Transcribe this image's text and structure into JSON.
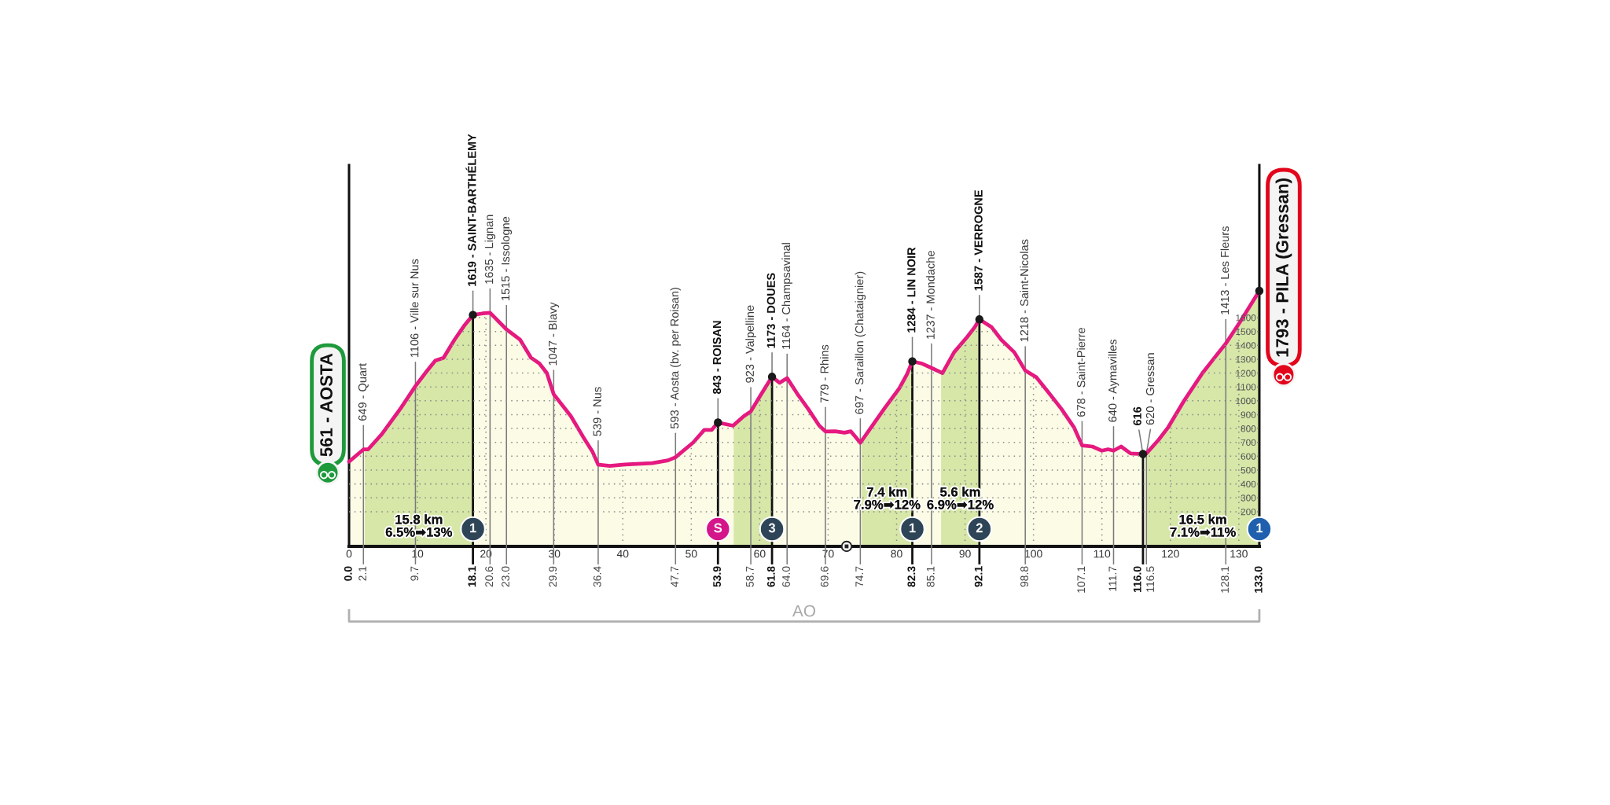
{
  "chart_data": {
    "type": "line",
    "xlim": [
      0,
      133
    ],
    "xticks": [
      0,
      10,
      20,
      30,
      40,
      50,
      60,
      70,
      80,
      90,
      100,
      110,
      120,
      130
    ],
    "ylim": [
      -50,
      2700
    ],
    "yticks": [
      200,
      300,
      400,
      500,
      600,
      700,
      800,
      900,
      1000,
      1100,
      1200,
      1300,
      1400,
      1500,
      1600
    ],
    "x2lim": [
      0,
      133
    ],
    "x2ticks": [
      {
        "value": 0,
        "label": "0.0"
      },
      2.1,
      9.7,
      18.1,
      20.6,
      {
        "value": 23,
        "label": "23.0"
      },
      29.9,
      36.4,
      47.7,
      53.9,
      58.7,
      61.8,
      {
        "value": 64,
        "label": "64.0"
      },
      69.6,
      74.7,
      82.3,
      85.1,
      92.1,
      98.8,
      107.1,
      111.7,
      {
        "value": 116,
        "label": "116.0"
      },
      116.5,
      128.1,
      {
        "value": 133,
        "label": "133.0"
      }
    ],
    "grid": true,
    "series": [
      {
        "color": "#e5197f",
        "x": [
          0,
          2.1,
          2.8,
          4.8,
          7.6,
          9.7,
          11.3,
          12.6,
          13.8,
          15.4,
          16.8,
          18.1,
          19.5,
          20.6,
          23.0,
          25.0,
          26.6,
          27.8,
          28.9,
          29.9,
          32.4,
          34.2,
          35.6,
          36.4,
          38.1,
          40.3,
          44.3,
          46.6,
          47.7,
          50.3,
          51.9,
          53.0,
          53.9,
          56.1,
          57.7,
          58.7,
          60.0,
          61.8,
          62.9,
          64.0,
          65.5,
          67.1,
          68.7,
          69.6,
          71.0,
          72.4,
          73.3,
          74.0,
          74.7,
          76.3,
          78.3,
          80.4,
          81.5,
          82.3,
          83.6,
          85.1,
          86.7,
          88.4,
          90.3,
          91.4,
          92.1,
          93.9,
          95.3,
          97.2,
          98.8,
          100.4,
          102.2,
          104.1,
          105.9,
          107.1,
          108.6,
          110.0,
          110.9,
          111.7,
          112.8,
          114.2,
          116.0,
          116.5,
          118.3,
          119.7,
          122.0,
          124.7,
          126.6,
          128.1,
          130.2,
          133.0
        ],
        "values": [
          561,
          649,
          650,
          760,
          950,
          1106,
          1210,
          1290,
          1310,
          1440,
          1540,
          1619,
          1630,
          1635,
          1515,
          1440,
          1310,
          1270,
          1200,
          1047,
          890,
          740,
          630,
          539,
          530,
          540,
          550,
          570,
          593,
          700,
          790,
          790,
          843,
          820,
          890,
          923,
          1030,
          1173,
          1130,
          1164,
          1050,
          940,
          820,
          779,
          780,
          770,
          780,
          740,
          697,
          810,
          950,
          1090,
          1190,
          1284,
          1270,
          1237,
          1200,
          1350,
          1460,
          1530,
          1587,
          1530,
          1440,
          1350,
          1218,
          1170,
          1060,
          940,
          810,
          678,
          670,
          640,
          650,
          640,
          670,
          620,
          616,
          620,
          720,
          810,
          1000,
          1200,
          1320,
          1413,
          1570,
          1793
        ]
      },
      {
        "type": "scatter",
        "color": "#1a1a1a",
        "x": [
          18.1,
          53.9,
          61.8,
          82.3,
          92.1,
          116.0,
          133.0
        ],
        "values": [
          1619,
          843,
          1173,
          1284,
          1587,
          616,
          1793
        ]
      },
      {
        "type": "bubble",
        "x": [
          18.1,
          53.9,
          61.8,
          82.3,
          92.1,
          133.0
        ],
        "values": [
          75,
          75,
          75,
          75,
          75,
          75
        ],
        "sizes": [
          1,
          1,
          1,
          1,
          1,
          1
        ],
        "colors": [
          "#2e4457",
          "#d4168a",
          "#2e4457",
          "#2e4457",
          "#2e4457",
          "#1f5fae"
        ]
      }
    ],
    "bands": [
      {
        "axis": "x",
        "from": 0,
        "to": 133,
        "color": "#fbfbe6"
      },
      {
        "axis": "x",
        "from": 2.3,
        "to": 18.1,
        "label": "15.8 km\n6.5%➡13%",
        "color": "#d6e7a8"
      },
      {
        "axis": "x",
        "from": 56.2,
        "to": 61.8,
        "color": "#d6e7a8"
      },
      {
        "axis": "x",
        "from": 74.9,
        "to": 82.3,
        "label": "7.4 km\n7.9%➡12%",
        "color": "#d6e7a8"
      },
      {
        "axis": "x",
        "from": 86.5,
        "to": 92.1,
        "label": "5.6 km\n6.9%➡12%",
        "color": "#d6e7a8"
      },
      {
        "axis": "x",
        "from": 116.5,
        "to": 133,
        "label": "16.5 km\n7.1%➡11%",
        "color": "#d6e7a8"
      }
    ],
    "ref_lines": [
      {
        "axis": "x",
        "value": 2.1,
        "color": "#7a7a7a"
      },
      {
        "axis": "x",
        "value": 9.7,
        "color": "#7a7a7a"
      },
      {
        "axis": "x",
        "value": 18.1,
        "color": "#111111"
      },
      {
        "axis": "x",
        "value": 20.6,
        "color": "#7a7a7a"
      },
      {
        "axis": "x",
        "value": 23.0,
        "color": "#7a7a7a"
      },
      {
        "axis": "x",
        "value": 29.9,
        "color": "#7a7a7a"
      },
      {
        "axis": "x",
        "value": 36.4,
        "color": "#7a7a7a"
      },
      {
        "axis": "x",
        "value": 47.7,
        "color": "#7a7a7a"
      },
      {
        "axis": "x",
        "value": 53.9,
        "color": "#111111"
      },
      {
        "axis": "x",
        "value": 58.7,
        "color": "#7a7a7a"
      },
      {
        "axis": "x",
        "value": 61.8,
        "color": "#111111"
      },
      {
        "axis": "x",
        "value": 64.0,
        "color": "#7a7a7a"
      },
      {
        "axis": "x",
        "value": 69.6,
        "color": "#7a7a7a"
      },
      {
        "axis": "x",
        "value": 74.7,
        "color": "#7a7a7a"
      },
      {
        "axis": "x",
        "value": 82.3,
        "color": "#111111"
      },
      {
        "axis": "x",
        "value": 85.1,
        "color": "#7a7a7a"
      },
      {
        "axis": "x",
        "value": 92.1,
        "color": "#111111"
      },
      {
        "axis": "x",
        "value": 98.8,
        "color": "#7a7a7a"
      },
      {
        "axis": "x",
        "value": 107.1,
        "color": "#7a7a7a"
      },
      {
        "axis": "x",
        "value": 111.7,
        "color": "#7a7a7a"
      },
      {
        "axis": "x",
        "value": 116.0,
        "color": "#111111"
      },
      {
        "axis": "x",
        "value": 116.5,
        "color": "#7a7a7a"
      },
      {
        "axis": "x",
        "value": 128.1,
        "color": "#7a7a7a"
      }
    ],
    "annotations": [
      {
        "text": "561 - AOSTA",
        "x": 0,
        "y": 561
      },
      {
        "text": "649 - Quart",
        "x": 2.1,
        "y": 649
      },
      {
        "text": "1106 - Ville sur Nus",
        "x": 9.7,
        "y": 1106
      },
      {
        "text": "1619 - SAINT-BARTHÉLEMY",
        "x": 18.1,
        "y": 1619
      },
      {
        "text": "1",
        "x": 18.1,
        "y": 75
      },
      {
        "text": "1635 - Lignan",
        "x": 20.6,
        "y": 1635
      },
      {
        "text": "1515 - Issologne",
        "x": 23.0,
        "y": 1515
      },
      {
        "text": "1047 - Blavy",
        "x": 29.9,
        "y": 1047
      },
      {
        "text": "539 - Nus",
        "x": 36.4,
        "y": 539
      },
      {
        "text": "593 - Aosta (bv. per Roisan)",
        "x": 47.7,
        "y": 593
      },
      {
        "text": "843 - ROISAN",
        "x": 53.9,
        "y": 843
      },
      {
        "text": "S",
        "x": 53.9,
        "y": 75
      },
      {
        "text": "923 - Valpelline",
        "x": 58.7,
        "y": 923
      },
      {
        "text": "1173 - DOUES",
        "x": 61.8,
        "y": 1173
      },
      {
        "text": "3",
        "x": 61.8,
        "y": 75
      },
      {
        "text": "1164 - Champsavinal",
        "x": 64.0,
        "y": 1164
      },
      {
        "text": "779 - Rhins",
        "x": 69.6,
        "y": 779
      },
      {
        "text": "697 - Saraillon (Chataignier)",
        "x": 74.7,
        "y": 697
      },
      {
        "text": "1284 - LIN NOIR",
        "x": 82.3,
        "y": 1284
      },
      {
        "text": "1",
        "x": 82.3,
        "y": 75
      },
      {
        "text": "1237 - Mondache",
        "x": 85.1,
        "y": 1237
      },
      {
        "text": "1587 - VERROGNE",
        "x": 92.1,
        "y": 1587
      },
      {
        "text": "2",
        "x": 92.1,
        "y": 75
      },
      {
        "text": "1218 - Saint-Nicolas",
        "x": 98.8,
        "y": 1218
      },
      {
        "text": "678 - Saint-Pierre",
        "x": 107.1,
        "y": 678
      },
      {
        "text": "640 - Aymavilles",
        "x": 111.7,
        "y": 640
      },
      {
        "text": "616",
        "x": 116.0,
        "y": 616
      },
      {
        "text": "620 - Gressan",
        "x": 116.5,
        "y": 620
      },
      {
        "text": "1413 - Les Fleurs",
        "x": 128.1,
        "y": 1413
      },
      {
        "text": "1",
        "x": 133,
        "y": 75
      },
      {
        "text": "1793 - PILA (Gressan)",
        "x": 133,
        "y": 1793
      },
      "AO"
    ]
  }
}
